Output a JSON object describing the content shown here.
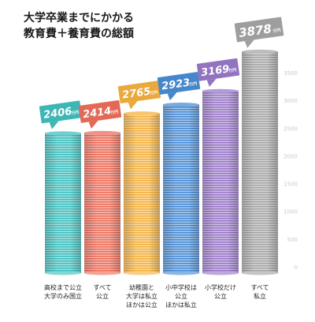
{
  "chart_data": {
    "type": "bar",
    "title_lines": [
      "大学卒業までにかかる",
      "教育費＋養育費の総額"
    ],
    "unit": "万円",
    "categories": [
      [
        "高校まで公立",
        "大学のみ国立"
      ],
      [
        "すべて",
        "公立"
      ],
      [
        "幼稚園と",
        "大学は私立",
        "ほかは公立"
      ],
      [
        "小中学校は",
        "公立",
        "ほかは私立"
      ],
      [
        "小学校だけ",
        "公立"
      ],
      [
        "すべて",
        "私立"
      ]
    ],
    "values": [
      2406,
      2414,
      2765,
      2923,
      3169,
      3878
    ],
    "value_labels": [
      "2406",
      "2414",
      "2765",
      "2923",
      "3169",
      "3878"
    ],
    "colors": [
      "#3fc1bf",
      "#ef6e5b",
      "#f5b23f",
      "#4a8ed6",
      "#9a79c9",
      "#a6a6a6"
    ],
    "y_ticks": [
      "0",
      "500",
      "1000",
      "1500",
      "2000",
      "2500",
      "3000",
      "3500"
    ],
    "ylim": [
      0,
      3500
    ],
    "legend": "none",
    "grid": false
  }
}
